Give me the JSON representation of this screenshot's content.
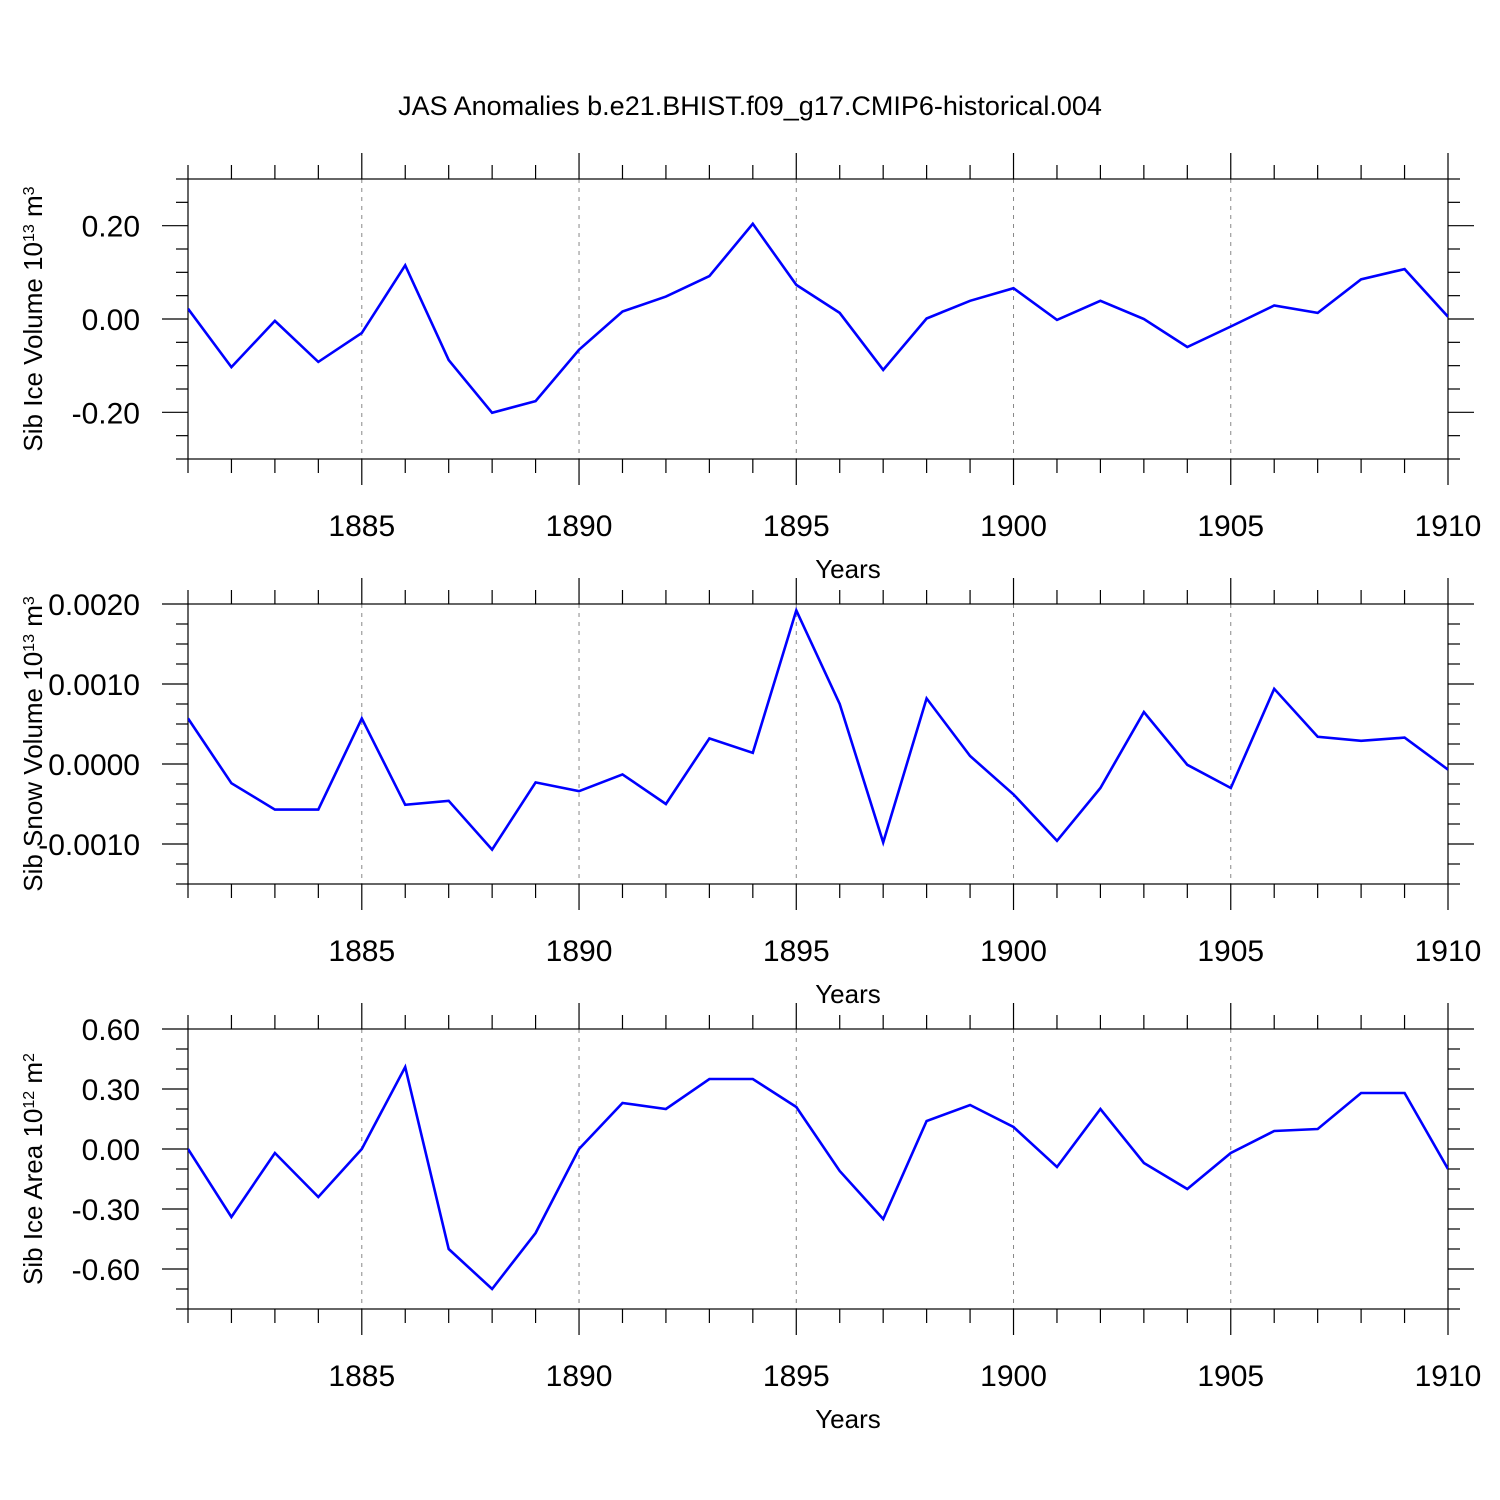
{
  "title": "JAS Anomalies b.e21.BHIST.f09_g17.CMIP6-historical.004",
  "chart_data": [
    {
      "type": "line",
      "xlabel": "Years",
      "ylabel": "Sib Ice Volume 10",
      "ylabel_exp": "13",
      "ylabel_unit": " m",
      "ylabel_unit_exp": "3",
      "xlim": [
        1881,
        1910
      ],
      "ylim": [
        -0.3,
        0.3
      ],
      "yticks": [
        -0.2,
        0.0,
        0.2
      ],
      "ytick_labels": [
        "-0.20",
        "0.00",
        "0.20"
      ],
      "y_minor_step": 0.05,
      "xticks": [
        1885,
        1890,
        1895,
        1900,
        1905,
        1910
      ],
      "xtick_labels": [
        "1885",
        "1890",
        "1895",
        "1900",
        "1905",
        "1910"
      ],
      "grid": "vertical-dashed-at-major-x",
      "line_color": "#0000ff",
      "x": [
        1881,
        1882,
        1883,
        1884,
        1885,
        1886,
        1887,
        1888,
        1889,
        1890,
        1891,
        1892,
        1893,
        1894,
        1895,
        1896,
        1897,
        1898,
        1899,
        1900,
        1901,
        1902,
        1903,
        1904,
        1905,
        1906,
        1907,
        1908,
        1909,
        1910
      ],
      "values": [
        0.022,
        -0.103,
        -0.004,
        -0.092,
        -0.03,
        0.115,
        -0.088,
        -0.201,
        -0.176,
        -0.066,
        0.016,
        0.048,
        0.092,
        0.204,
        0.073,
        0.013,
        -0.109,
        0.001,
        0.039,
        0.066,
        -0.002,
        0.039,
        0.0,
        -0.06,
        -0.016,
        0.029,
        0.013,
        0.085,
        0.107,
        0.005
      ]
    },
    {
      "type": "line",
      "xlabel": "Years",
      "ylabel": "Sib Snow Volume 10",
      "ylabel_exp": "13",
      "ylabel_unit": " m",
      "ylabel_unit_exp": "3",
      "xlim": [
        1881,
        1910
      ],
      "ylim": [
        -0.0015,
        0.002
      ],
      "yticks": [
        -0.001,
        0.0,
        0.001,
        0.002
      ],
      "ytick_labels": [
        "-0.0010",
        "0.0000",
        "0.0010",
        "0.0020"
      ],
      "y_minor_step": 0.00025,
      "xticks": [
        1885,
        1890,
        1895,
        1900,
        1905,
        1910
      ],
      "xtick_labels": [
        "1885",
        "1890",
        "1895",
        "1900",
        "1905",
        "1910"
      ],
      "grid": "vertical-dashed-at-major-x",
      "line_color": "#0000ff",
      "x": [
        1881,
        1882,
        1883,
        1884,
        1885,
        1886,
        1887,
        1888,
        1889,
        1890,
        1891,
        1892,
        1893,
        1894,
        1895,
        1896,
        1897,
        1898,
        1899,
        1900,
        1901,
        1902,
        1903,
        1904,
        1905,
        1906,
        1907,
        1908,
        1909,
        1910
      ],
      "values": [
        0.00057,
        -0.00024,
        -0.00057,
        -0.00057,
        0.00057,
        -0.00051,
        -0.00046,
        -0.00107,
        -0.00023,
        -0.00034,
        -0.00013,
        -0.0005,
        0.00032,
        0.00014,
        0.00192,
        0.00075,
        -0.00098,
        0.00082,
        0.0001,
        -0.00038,
        -0.00096,
        -0.0003,
        0.00065,
        -1e-05,
        -0.0003,
        0.00094,
        0.00034,
        0.00029,
        0.00033,
        -7e-05
      ]
    },
    {
      "type": "line",
      "xlabel": "Years",
      "ylabel": "Sib Ice Area 10",
      "ylabel_exp": "12",
      "ylabel_unit": " m",
      "ylabel_unit_exp": "2",
      "xlim": [
        1881,
        1910
      ],
      "ylim": [
        -0.8,
        0.6
      ],
      "yticks": [
        -0.6,
        -0.3,
        0.0,
        0.3,
        0.6
      ],
      "ytick_labels": [
        "-0.60",
        "-0.30",
        "0.00",
        "0.30",
        "0.60"
      ],
      "y_minor_step": 0.1,
      "xticks": [
        1885,
        1890,
        1895,
        1900,
        1905,
        1910
      ],
      "xtick_labels": [
        "1885",
        "1890",
        "1895",
        "1900",
        "1905",
        "1910"
      ],
      "grid": "vertical-dashed-at-major-x",
      "line_color": "#0000ff",
      "x": [
        1881,
        1882,
        1883,
        1884,
        1885,
        1886,
        1887,
        1888,
        1889,
        1890,
        1891,
        1892,
        1893,
        1894,
        1895,
        1896,
        1897,
        1898,
        1899,
        1900,
        1901,
        1902,
        1903,
        1904,
        1905,
        1906,
        1907,
        1908,
        1909,
        1910
      ],
      "values": [
        0.0,
        -0.34,
        -0.02,
        -0.24,
        0.0,
        0.41,
        -0.5,
        -0.7,
        -0.42,
        0.0,
        0.23,
        0.2,
        0.35,
        0.35,
        0.21,
        -0.11,
        -0.35,
        0.14,
        0.22,
        0.11,
        -0.09,
        0.2,
        -0.07,
        -0.2,
        -0.02,
        0.09,
        0.1,
        0.28,
        0.28,
        -0.1
      ]
    }
  ]
}
